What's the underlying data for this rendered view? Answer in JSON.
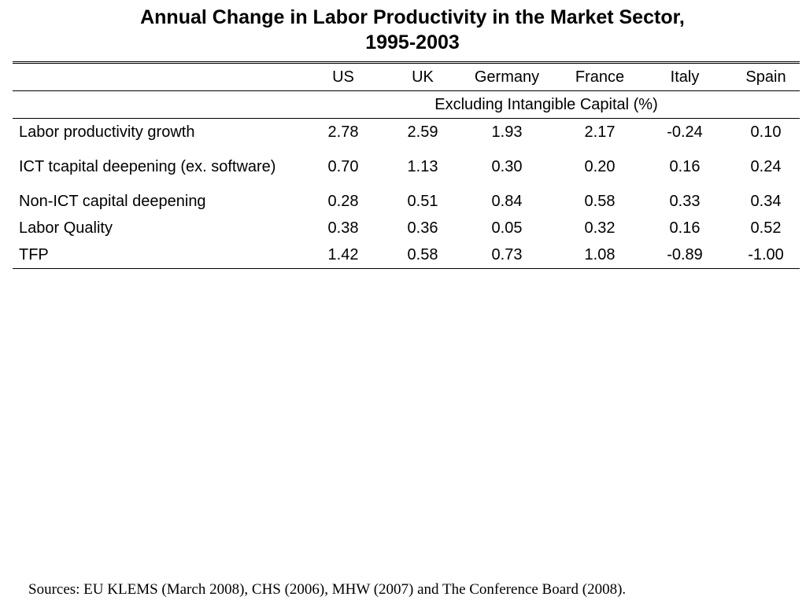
{
  "title": {
    "line1": "Annual Change in Labor Productivity in the Market Sector,",
    "line2": "1995-2003"
  },
  "table": {
    "columns": [
      "US",
      "UK",
      "Germany",
      "France",
      "Italy",
      "Spain"
    ],
    "subheader": "Excluding Intangible Capital (%)",
    "rows": [
      {
        "label": "Labor productivity growth",
        "values": [
          "2.78",
          "2.59",
          "1.93",
          "2.17",
          "-0.24",
          "0.10"
        ]
      },
      {
        "label": "ICT tcapital deepening (ex. software)",
        "values": [
          "0.70",
          "1.13",
          "0.30",
          "0.20",
          "0.16",
          "0.24"
        ]
      },
      {
        "label": "Non-ICT capital deepening",
        "values": [
          "0.28",
          "0.51",
          "0.84",
          "0.58",
          "0.33",
          "0.34"
        ]
      },
      {
        "label": "Labor Quality",
        "values": [
          "0.38",
          "0.36",
          "0.05",
          "0.32",
          "0.16",
          "0.52"
        ]
      },
      {
        "label": "TFP",
        "values": [
          "1.42",
          "0.58",
          "0.73",
          "1.08",
          "-0.89",
          "-1.00"
        ]
      }
    ]
  },
  "sources": "Sources: EU KLEMS (March 2008), CHS (2006), MHW (2007) and The Conference Board (2008)."
}
